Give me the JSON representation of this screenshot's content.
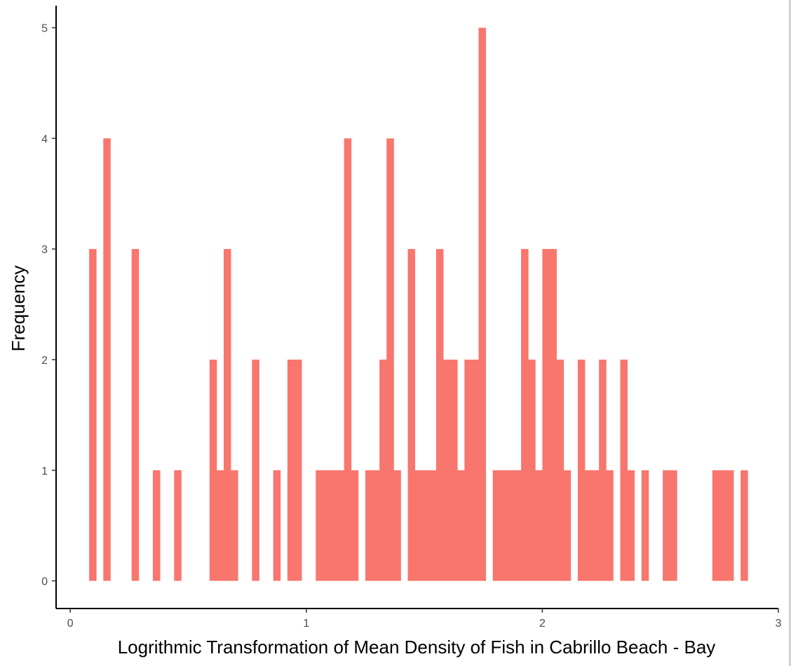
{
  "chart_data": {
    "type": "bar",
    "title": "",
    "xlabel": "Logrithmic Transformation of Mean Density of Fish in Cabrillo Beach - Bay",
    "ylabel": "Frequency",
    "xlim": [
      -0.06,
      3.0
    ],
    "ylim": [
      -0.25,
      5.2
    ],
    "x_ticks": [
      0,
      1,
      2,
      3
    ],
    "x_tick_labels": [
      "0",
      "1",
      "2",
      "3"
    ],
    "y_ticks": [
      0,
      1,
      2,
      3,
      4,
      5
    ],
    "y_tick_labels": [
      "0",
      "1",
      "2",
      "3",
      "4",
      "5"
    ],
    "bin_width": 0.03,
    "bin_starts": [
      0.08,
      0.14,
      0.26,
      0.35,
      0.44,
      0.59,
      0.62,
      0.65,
      0.68,
      0.77,
      0.86,
      0.92,
      0.95,
      1.04,
      1.07,
      1.1,
      1.13,
      1.16,
      1.19,
      1.25,
      1.28,
      1.31,
      1.34,
      1.37,
      1.43,
      1.46,
      1.49,
      1.52,
      1.55,
      1.58,
      1.61,
      1.64,
      1.67,
      1.7,
      1.73,
      1.79,
      1.82,
      1.85,
      1.88,
      1.91,
      1.94,
      1.97,
      2.0,
      2.03,
      2.06,
      2.09,
      2.15,
      2.18,
      2.21,
      2.24,
      2.27,
      2.33,
      2.36,
      2.42,
      2.51,
      2.54,
      2.72,
      2.75,
      2.78,
      2.84
    ],
    "values": [
      3,
      4,
      3,
      1,
      1,
      2,
      1,
      3,
      1,
      2,
      1,
      2,
      2,
      1,
      1,
      1,
      1,
      4,
      1,
      1,
      1,
      2,
      4,
      1,
      3,
      1,
      1,
      1,
      3,
      2,
      2,
      1,
      2,
      2,
      5,
      1,
      1,
      1,
      1,
      3,
      2,
      1,
      3,
      3,
      2,
      1,
      2,
      1,
      1,
      2,
      1,
      2,
      1,
      1,
      1,
      1,
      1,
      1,
      1,
      1
    ],
    "bar_color": "#F8766D",
    "grid": false,
    "legend": "none"
  }
}
